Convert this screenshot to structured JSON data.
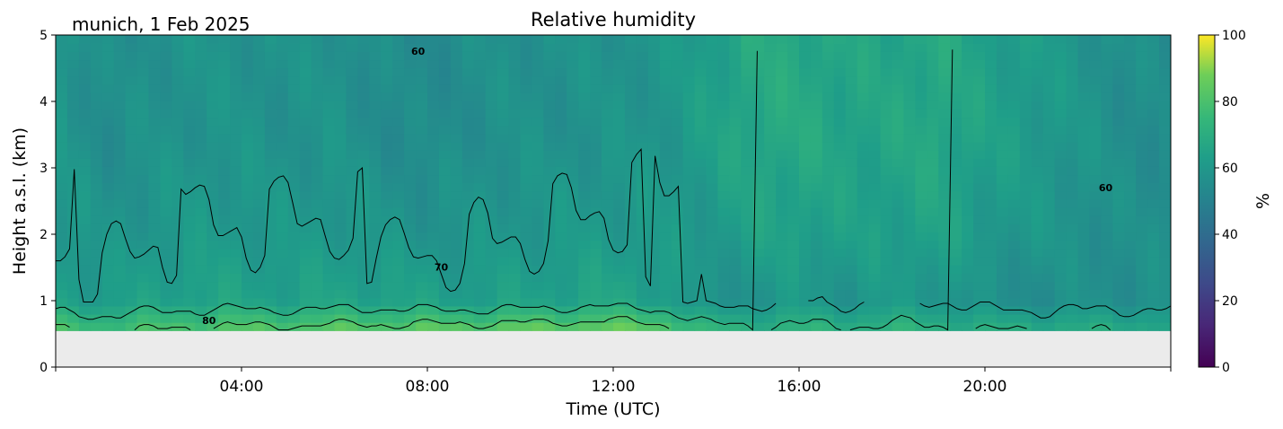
{
  "chart_data": {
    "type": "heatmap",
    "title": "Relative humidity",
    "subtitle": "munich, 1 Feb 2025",
    "xlabel": "Time (UTC)",
    "ylabel": "Height a.s.l. (km)",
    "xlim": [
      0,
      24
    ],
    "ylim": [
      0,
      5
    ],
    "xticks": [
      {
        "value": 4,
        "label": "04:00"
      },
      {
        "value": 8,
        "label": "08:00"
      },
      {
        "value": 12,
        "label": "12:00"
      },
      {
        "value": 16,
        "label": "16:00"
      },
      {
        "value": 20,
        "label": "20:00"
      }
    ],
    "yticks": [
      0,
      1,
      2,
      3,
      4,
      5
    ],
    "colorbar": {
      "label": "%",
      "range": [
        0,
        100
      ],
      "ticks": [
        0,
        20,
        40,
        60,
        80,
        100
      ],
      "colormap": "viridis"
    },
    "no_data_below_km": 0.55,
    "contour_levels": [
      60,
      70,
      80
    ],
    "contour_labels": [
      {
        "text": "60",
        "x": 7.8,
        "y": 4.7
      },
      {
        "text": "70",
        "x": 8.3,
        "y": 1.45
      },
      {
        "text": "80",
        "x": 3.3,
        "y": 0.65
      },
      {
        "text": "60",
        "x": 22.6,
        "y": 2.65
      }
    ],
    "time_profile": [
      {
        "t": 0.0,
        "base": 80,
        "mid": 64,
        "top": 60
      },
      {
        "t": 1.0,
        "base": 78,
        "mid": 62,
        "top": 55
      },
      {
        "t": 2.0,
        "base": 80,
        "mid": 64,
        "top": 57
      },
      {
        "t": 3.0,
        "base": 82,
        "mid": 65,
        "top": 58
      },
      {
        "t": 4.0,
        "base": 83,
        "mid": 65,
        "top": 58
      },
      {
        "t": 5.0,
        "base": 83,
        "mid": 64,
        "top": 57
      },
      {
        "t": 6.0,
        "base": 84,
        "mid": 65,
        "top": 58
      },
      {
        "t": 7.0,
        "base": 84,
        "mid": 65,
        "top": 55
      },
      {
        "t": 8.0,
        "base": 85,
        "mid": 64,
        "top": 54
      },
      {
        "t": 9.0,
        "base": 85,
        "mid": 63,
        "top": 56
      },
      {
        "t": 10.0,
        "base": 86,
        "mid": 64,
        "top": 57
      },
      {
        "t": 11.0,
        "base": 86,
        "mid": 65,
        "top": 57
      },
      {
        "t": 12.0,
        "base": 87,
        "mid": 66,
        "top": 58
      },
      {
        "t": 13.0,
        "base": 85,
        "mid": 64,
        "top": 59
      },
      {
        "t": 14.0,
        "base": 74,
        "mid": 56,
        "top": 63
      },
      {
        "t": 15.0,
        "base": 72,
        "mid": 58,
        "top": 68
      },
      {
        "t": 16.0,
        "base": 73,
        "mid": 60,
        "top": 68
      },
      {
        "t": 17.0,
        "base": 72,
        "mid": 58,
        "top": 66
      },
      {
        "t": 18.0,
        "base": 73,
        "mid": 60,
        "top": 66
      },
      {
        "t": 19.0,
        "base": 72,
        "mid": 60,
        "top": 68
      },
      {
        "t": 20.0,
        "base": 70,
        "mid": 56,
        "top": 64
      },
      {
        "t": 21.0,
        "base": 70,
        "mid": 55,
        "top": 62
      },
      {
        "t": 22.0,
        "base": 69,
        "mid": 56,
        "top": 59
      },
      {
        "t": 23.0,
        "base": 69,
        "mid": 56,
        "top": 56
      },
      {
        "t": 24.0,
        "base": 68,
        "mid": 57,
        "top": 55
      }
    ]
  }
}
